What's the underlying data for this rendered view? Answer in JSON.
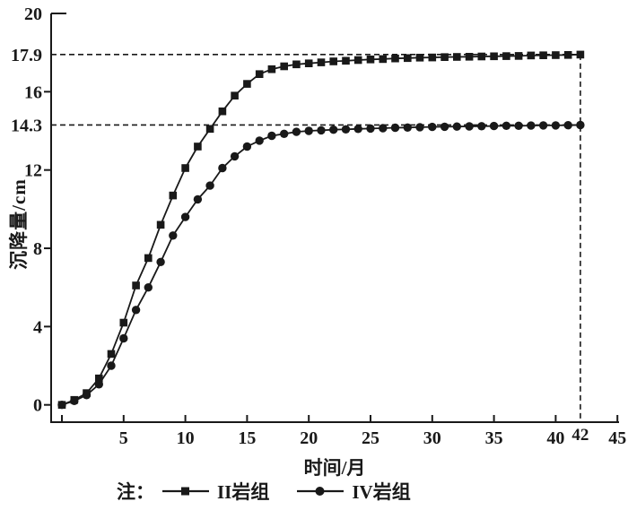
{
  "figure": {
    "note_label": "注：",
    "background": "#ffffff",
    "ink_color": "#191919"
  },
  "chart_data": {
    "type": "line",
    "title": "",
    "xlabel": "时间/月",
    "ylabel": "沉降量/cm",
    "xlim": [
      -0.9,
      45
    ],
    "ylim": [
      0,
      20
    ],
    "grid": false,
    "legend_position": "below",
    "x_ticks": [
      0,
      5,
      10,
      15,
      20,
      25,
      30,
      35,
      40,
      45
    ],
    "x_tick_labels": [
      "",
      "5",
      "10",
      "15",
      "20",
      "25",
      "30",
      "35",
      "40",
      "45"
    ],
    "x_extra_label": {
      "value": 42,
      "label": "42"
    },
    "y_ticks": [
      0,
      4,
      8,
      12,
      16,
      20
    ],
    "y_tick_labels": [
      "0",
      "4",
      "8",
      "12",
      "16",
      "20"
    ],
    "y_special_ticks": [
      {
        "value": 17.9,
        "label": "17.9"
      },
      {
        "value": 14.3,
        "label": "14.3"
      }
    ],
    "reference_lines": {
      "horizontal": [
        17.9,
        14.3
      ],
      "vertical": [
        42
      ]
    },
    "x": [
      0,
      1,
      2,
      3,
      4,
      5,
      6,
      7,
      8,
      9,
      10,
      11,
      12,
      13,
      14,
      15,
      16,
      17,
      18,
      19,
      20,
      21,
      22,
      23,
      24,
      25,
      26,
      27,
      28,
      29,
      30,
      31,
      32,
      33,
      34,
      35,
      36,
      37,
      38,
      39,
      40,
      41,
      42
    ],
    "series": [
      {
        "name": "II岩组",
        "marker": "square",
        "final_value": 17.9,
        "values": [
          0,
          0.25,
          0.6,
          1.35,
          2.6,
          4.2,
          6.1,
          7.5,
          9.2,
          10.7,
          12.1,
          13.2,
          14.1,
          15.0,
          15.8,
          16.4,
          16.9,
          17.15,
          17.3,
          17.4,
          17.45,
          17.5,
          17.55,
          17.58,
          17.62,
          17.65,
          17.67,
          17.7,
          17.72,
          17.74,
          17.75,
          17.77,
          17.78,
          17.79,
          17.8,
          17.81,
          17.82,
          17.83,
          17.85,
          17.86,
          17.87,
          17.88,
          17.9
        ]
      },
      {
        "name": "IV岩组",
        "marker": "circle",
        "final_value": 14.3,
        "values": [
          0,
          0.2,
          0.5,
          1.05,
          2.0,
          3.4,
          4.85,
          6.0,
          7.3,
          8.65,
          9.6,
          10.5,
          11.2,
          12.1,
          12.7,
          13.2,
          13.5,
          13.75,
          13.85,
          13.95,
          14.0,
          14.03,
          14.06,
          14.08,
          14.1,
          14.12,
          14.14,
          14.16,
          14.17,
          14.19,
          14.2,
          14.21,
          14.22,
          14.23,
          14.24,
          14.25,
          14.26,
          14.26,
          14.27,
          14.28,
          14.28,
          14.29,
          14.3
        ]
      }
    ]
  }
}
